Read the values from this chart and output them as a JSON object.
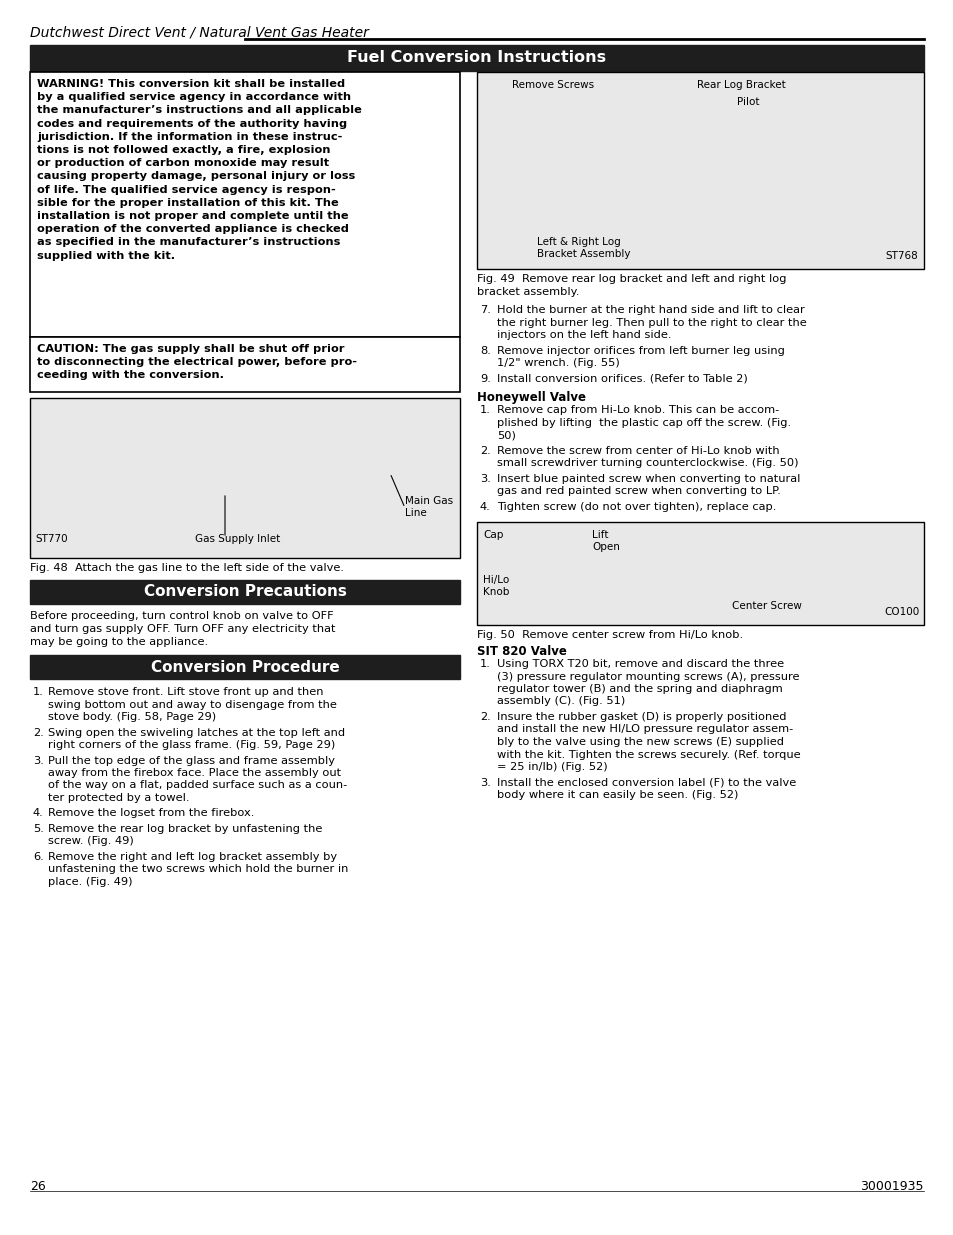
{
  "page_title": "Dutchwest Direct Vent / Natural Vent Gas Heater",
  "main_header": "Fuel Conversion Instructions",
  "warning_lines": [
    "WARNING! This conversion kit shall be installed",
    "by a qualified service agency in accordance with",
    "the manufacturer’s instructions and all applicable",
    "codes and requirements of the authority having",
    "jurisdiction. If the information in these instruc-",
    "tions is not followed exactly, a fire, explosion",
    "or production of carbon monoxide may result",
    "causing property damage, personal injury or loss",
    "of life. The qualified service agency is respon-",
    "sible for the proper installation of this kit. The",
    "installation is not proper and complete until the",
    "operation of the converted appliance is checked",
    "as specified in the manufacturer’s instructions",
    "supplied with the kit."
  ],
  "caution_lines": [
    "CAUTION: The gas supply shall be shut off prior",
    "to disconnecting the electrical power, before pro-",
    "ceeding with the conversion."
  ],
  "fig48_caption": "Fig. 48  Attach the gas line to the left side of the valve.",
  "fig49_caption_line1": "Fig. 49  Remove rear log bracket and left and right log",
  "fig49_caption_line2": "bracket assembly.",
  "conversion_precautions_header": "Conversion Precautions",
  "precautions_lines": [
    "Before proceeding, turn control knob on valve to OFF",
    "and turn gas supply OFF. Turn OFF any electricity that",
    "may be going to the appliance."
  ],
  "conversion_procedure_header": "Conversion Procedure",
  "proc_items": [
    [
      "Remove stove front. Lift stove front up and then",
      "swing bottom out and away to disengage from the",
      "stove body. (Fig. 58, Page 29)"
    ],
    [
      "Swing open the swiveling latches at the top left and",
      "right corners of the glass frame. (Fig. 59, Page 29)"
    ],
    [
      "Pull the top edge of the glass and frame assembly",
      "away from the firebox face. Place the assembly out",
      "of the way on a flat, padded surface such as a coun-",
      "ter protected by a towel."
    ],
    [
      "Remove the logset from the firebox."
    ],
    [
      "Remove the rear log bracket by unfastening the",
      "screw. (Fig. 49)"
    ],
    [
      "Remove the right and left log bracket assembly by",
      "unfastening the two screws which hold the burner in",
      "place. (Fig. 49)"
    ]
  ],
  "items_7_9": [
    [
      "Hold the burner at the right hand side and lift to clear",
      "the right burner leg. Then pull to the right to clear the",
      "injectors on the left hand side."
    ],
    [
      "Remove injector orifices from left burner leg using",
      "1/2\" wrench. (Fig. 55)"
    ],
    [
      "Install conversion orifices. (Refer to Table 2)"
    ]
  ],
  "honeywell_header": "Honeywell Valve",
  "honeywell_items": [
    [
      "Remove cap from Hi-Lo knob. This can be accom-",
      "plished by lifting  the plastic cap off the screw. (Fig.",
      "50)"
    ],
    [
      "Remove the screw from center of Hi-Lo knob with",
      "small screwdriver turning counterclockwise. (Fig. 50)"
    ],
    [
      "Insert blue painted screw when converting to natural",
      "gas and red painted screw when converting to LP."
    ],
    [
      "Tighten screw (do not over tighten), replace cap."
    ]
  ],
  "fig50_caption": "Fig. 50  Remove center screw from Hi/Lo knob.",
  "sit820_header": "SIT 820 Valve",
  "sit820_items": [
    [
      "Using TORX T20 bit, remove and discard the three",
      "(3) pressure regulator mounting screws (A), pressure",
      "regulator tower (B) and the spring and diaphragm",
      "assembly (C). (Fig. 51)"
    ],
    [
      "Insure the rubber gasket (D) is properly positioned",
      "and install the new HI/LO pressure regulator assem-",
      "bly to the valve using the new screws (E) supplied",
      "with the kit. Tighten the screws securely. (Ref. torque",
      "= 25 in/lb) (Fig. 52)"
    ],
    [
      "Install the enclosed conversion label (F) to the valve",
      "body where it can easily be seen. (Fig. 52)"
    ]
  ],
  "page_number": "26",
  "doc_number": "30001935",
  "bg": "#ffffff",
  "header_bg": "#1e1e1e",
  "hdr_text": "#ffffff"
}
